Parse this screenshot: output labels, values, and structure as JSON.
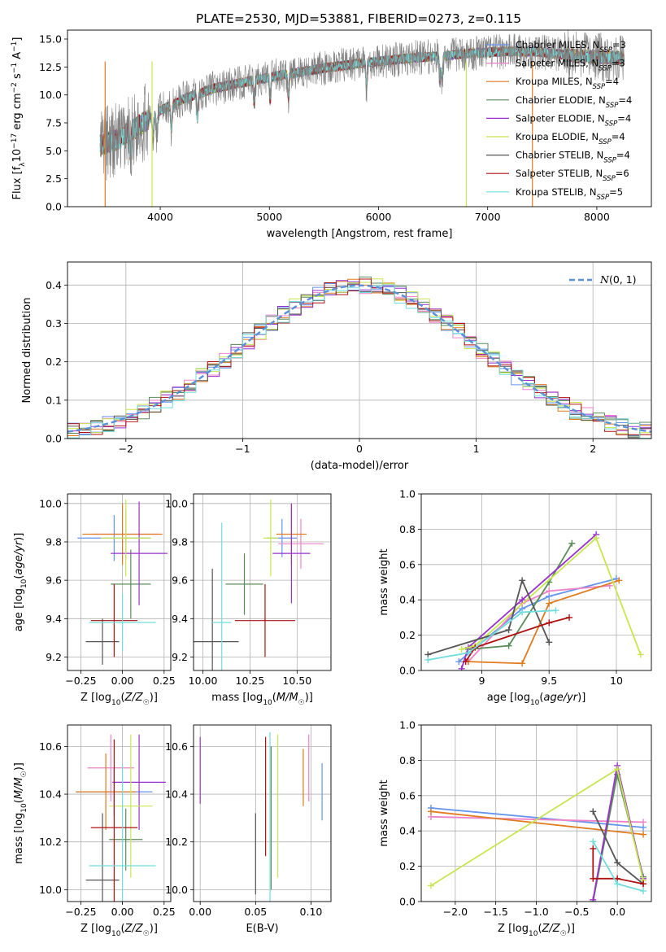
{
  "colors": {
    "Chabrier MILES": "#6495ed",
    "Salpeter MILES": "#ee82c8",
    "Kroupa MILES": "#e07b20",
    "Chabrier ELODIE": "#5a8c5a",
    "Salpeter ELODIE": "#9932cc",
    "Kroupa ELODIE": "#c8e650",
    "Chabrier STELIB": "#555555",
    "Salpeter STELIB": "#b01010",
    "Kroupa STELIB": "#70dcdc"
  },
  "chart_data": [
    {
      "id": "spectrum",
      "type": "line",
      "title": "PLATE=2530, MJD=53881, FIBERID=0273, z=0.115",
      "xlabel": "wavelength [Angstrom, rest frame]",
      "ylabel": "Flux [fλ10⁻¹⁷ erg cm⁻² s⁻¹ A⁻¹]",
      "xlim": [
        3150,
        8500
      ],
      "ylim": [
        0,
        15.8
      ],
      "xticks": [
        4000,
        5000,
        6000,
        7000,
        8000
      ],
      "yticks": [
        0.0,
        2.5,
        5.0,
        7.5,
        10.0,
        12.5,
        15.0
      ],
      "legend_position": "top-right",
      "legend": [
        "Chabrier MILES, N_SSP=3",
        "Salpeter MILES, N_SSP=3",
        "Kroupa MILES, N_SSP=4",
        "Chabrier ELODIE, N_SSP=4",
        "Salpeter ELODIE, N_SSP=4",
        "Kroupa ELODIE, N_SSP=4",
        "Chabrier STELIB, N_SSP=4",
        "Salpeter STELIB, N_SSP=6",
        "Kroupa STELIB, N_SSP=5"
      ],
      "continuum": {
        "x": [
          3450,
          3600,
          3800,
          4000,
          4200,
          4500,
          4800,
          5000,
          5200,
          5500,
          5800,
          6000,
          6300,
          6600,
          6800,
          7000,
          7200,
          7400,
          7600,
          7800,
          8000,
          8250
        ],
        "y": [
          5.5,
          6.0,
          7.2,
          8.6,
          9.6,
          10.6,
          11.2,
          11.6,
          11.9,
          12.4,
          12.8,
          13.0,
          13.3,
          13.5,
          13.7,
          13.8,
          13.9,
          13.9,
          13.7,
          13.5,
          13.4,
          13.3
        ]
      }
    },
    {
      "id": "residuals",
      "type": "line",
      "xlabel": "(data-model)/error",
      "ylabel": "Normed distribution",
      "xlim": [
        -2.5,
        2.5
      ],
      "ylim": [
        0,
        0.46
      ],
      "xticks": [
        -2,
        -1,
        0,
        1,
        2
      ],
      "yticks": [
        0.0,
        0.1,
        0.2,
        0.3,
        0.4
      ],
      "grid": true,
      "legend": "N(0,1)",
      "legend_position": "top-right",
      "gaussian": {
        "mu": 0,
        "sigma": 1
      }
    },
    {
      "id": "age-vs-Z",
      "type": "scatter",
      "xlabel": "Z [log10(Z/Z☉)]",
      "ylabel": "age  [log10(age/yr)]",
      "xlim": [
        -0.33,
        0.29
      ],
      "ylim": [
        9.13,
        10.05
      ],
      "xticks": [
        -0.25,
        0.0,
        0.25
      ],
      "xticklabels": [
        "−0.25",
        "0.00",
        "0.25"
      ],
      "yticks": [
        9.2,
        9.4,
        9.6,
        9.8,
        10.0
      ],
      "grid": true,
      "points": [
        {
          "model": "Chabrier MILES",
          "x": -0.05,
          "xerr": 0.22,
          "y": 9.82,
          "yerr": 0.12
        },
        {
          "model": "Salpeter MILES",
          "x": 0.02,
          "xerr": 0.2,
          "y": 9.84,
          "yerr": 0.13
        },
        {
          "model": "Kroupa MILES",
          "x": 0.0,
          "xerr": 0.24,
          "y": 9.84,
          "yerr": 0.16
        },
        {
          "model": "Chabrier ELODIE",
          "x": 0.05,
          "xerr": 0.12,
          "y": 9.58,
          "yerr": 0.18
        },
        {
          "model": "Salpeter ELODIE",
          "x": 0.1,
          "xerr": 0.17,
          "y": 9.74,
          "yerr": 0.27
        },
        {
          "model": "Kroupa ELODIE",
          "x": 0.02,
          "xerr": 0.15,
          "y": 9.82,
          "yerr": 0.2
        },
        {
          "model": "Chabrier STELIB",
          "x": -0.12,
          "xerr": 0.1,
          "y": 9.28,
          "yerr": 0.12
        },
        {
          "model": "Salpeter STELIB",
          "x": -0.05,
          "xerr": 0.14,
          "y": 9.39,
          "yerr": 0.19
        },
        {
          "model": "Kroupa STELIB",
          "x": 0.0,
          "xerr": 0.2,
          "y": 9.38,
          "yerr": 0.15
        }
      ]
    },
    {
      "id": "age-vs-mass",
      "type": "scatter",
      "xlabel": "mass [log10(M/M☉)]",
      "xlim": [
        9.95,
        10.68
      ],
      "ylim": [
        9.13,
        10.05
      ],
      "xticks": [
        10.0,
        10.25,
        10.5
      ],
      "xticklabels": [
        "10.00",
        "10.25",
        "10.50"
      ],
      "yticks": [
        9.2,
        9.4,
        9.6,
        9.8,
        10.0
      ],
      "grid": true,
      "points": [
        {
          "model": "Chabrier MILES",
          "x": 10.42,
          "xerr": 0.08,
          "y": 9.82,
          "yerr": 0.1
        },
        {
          "model": "Salpeter MILES",
          "x": 10.52,
          "xerr": 0.12,
          "y": 9.79,
          "yerr": 0.13
        },
        {
          "model": "Kroupa MILES",
          "x": 10.47,
          "xerr": 0.08,
          "y": 9.84,
          "yerr": 0.16
        },
        {
          "model": "Chabrier ELODIE",
          "x": 10.22,
          "xerr": 0.1,
          "y": 9.58,
          "yerr": 0.16
        },
        {
          "model": "Salpeter ELODIE",
          "x": 10.47,
          "xerr": 0.1,
          "y": 9.74,
          "yerr": 0.26
        },
        {
          "model": "Kroupa ELODIE",
          "x": 10.36,
          "xerr": 0.04,
          "y": 9.82,
          "yerr": 0.2
        },
        {
          "model": "Chabrier STELIB",
          "x": 10.05,
          "xerr": 0.14,
          "y": 9.28,
          "yerr": 0.38
        },
        {
          "model": "Salpeter STELIB",
          "x": 10.33,
          "xerr": 0.16,
          "y": 9.39,
          "yerr": 0.19
        },
        {
          "model": "Kroupa STELIB",
          "x": 10.1,
          "xerr": 0.05,
          "y": 9.38,
          "yerr": 0.52
        }
      ]
    },
    {
      "id": "massweight-vs-age",
      "type": "line",
      "xlabel": "age  [log10(age/yr)]",
      "ylabel": "mass weight",
      "xlim": [
        8.55,
        10.26
      ],
      "ylim": [
        0,
        1.0
      ],
      "xticks": [
        9.0,
        9.5,
        10.0
      ],
      "yticks": [
        0.0,
        0.2,
        0.4,
        0.6,
        0.8,
        1.0
      ],
      "grid": true,
      "series": [
        {
          "model": "Chabrier MILES",
          "x": [
            8.83,
            9.3,
            9.5,
            10.0
          ],
          "y": [
            0.05,
            0.35,
            0.42,
            0.52
          ]
        },
        {
          "model": "Salpeter MILES",
          "x": [
            8.9,
            9.3,
            9.5,
            9.95
          ],
          "y": [
            0.05,
            0.38,
            0.45,
            0.48
          ]
        },
        {
          "model": "Kroupa MILES",
          "x": [
            8.9,
            9.3,
            9.5,
            10.02
          ],
          "y": [
            0.05,
            0.04,
            0.38,
            0.51
          ]
        },
        {
          "model": "Chabrier ELODIE",
          "x": [
            8.9,
            9.2,
            9.5,
            9.67
          ],
          "y": [
            0.12,
            0.14,
            0.5,
            0.72
          ]
        },
        {
          "model": "Salpeter ELODIE",
          "x": [
            8.85,
            8.9,
            9.3,
            9.85
          ],
          "y": [
            0.01,
            0.13,
            0.4,
            0.77
          ]
        },
        {
          "model": "Kroupa ELODIE",
          "x": [
            8.85,
            8.95,
            9.85,
            10.18
          ],
          "y": [
            0.12,
            0.14,
            0.75,
            0.09
          ]
        },
        {
          "model": "Chabrier STELIB",
          "x": [
            8.6,
            9.2,
            9.3,
            9.5
          ],
          "y": [
            0.09,
            0.23,
            0.51,
            0.16
          ]
        },
        {
          "model": "Salpeter STELIB",
          "x": [
            8.88,
            8.95,
            9.5,
            9.65
          ],
          "y": [
            0.05,
            0.13,
            0.27,
            0.3
          ]
        },
        {
          "model": "Kroupa STELIB",
          "x": [
            8.6,
            8.9,
            9.3,
            9.55
          ],
          "y": [
            0.06,
            0.1,
            0.33,
            0.34
          ]
        }
      ]
    },
    {
      "id": "mass-vs-Z",
      "type": "scatter",
      "xlabel": "Z [log10(Z/Z☉)]",
      "ylabel": "mass [log10(M/M☉)]",
      "xlim": [
        -0.33,
        0.29
      ],
      "ylim": [
        9.95,
        10.69
      ],
      "xticks": [
        -0.25,
        0.0,
        0.25
      ],
      "xticklabels": [
        "−0.25",
        "0.00",
        "0.25"
      ],
      "yticks": [
        10.0,
        10.2,
        10.4,
        10.6
      ],
      "grid": true,
      "points": [
        {
          "model": "Chabrier MILES",
          "x": -0.05,
          "xerr": 0.23,
          "y": 10.41,
          "yerr": 0.1
        },
        {
          "model": "Salpeter MILES",
          "x": -0.07,
          "xerr": 0.14,
          "y": 10.51,
          "yerr": 0.14
        },
        {
          "model": "Kroupa MILES",
          "x": -0.1,
          "xerr": 0.18,
          "y": 10.41,
          "yerr": 0.16
        },
        {
          "model": "Chabrier ELODIE",
          "x": 0.02,
          "xerr": 0.1,
          "y": 10.21,
          "yerr": 0.13
        },
        {
          "model": "Salpeter ELODIE",
          "x": 0.1,
          "xerr": 0.16,
          "y": 10.45,
          "yerr": 0.2
        },
        {
          "model": "Kroupa ELODIE",
          "x": 0.05,
          "xerr": 0.13,
          "y": 10.35,
          "yerr": 0.3
        },
        {
          "model": "Chabrier STELIB",
          "x": -0.12,
          "xerr": 0.1,
          "y": 10.04,
          "yerr": 0.28
        },
        {
          "model": "Salpeter STELIB",
          "x": -0.05,
          "xerr": 0.14,
          "y": 10.26,
          "yerr": 0.37
        },
        {
          "model": "Kroupa STELIB",
          "x": 0.0,
          "xerr": 0.2,
          "y": 10.1,
          "yerr": 0.42
        }
      ]
    },
    {
      "id": "mass-vs-EBV",
      "type": "scatter",
      "xlabel": "E(B-V)",
      "xlim": [
        -0.006,
        0.118
      ],
      "ylim": [
        9.95,
        10.69
      ],
      "xticks": [
        0.0,
        0.05,
        0.1
      ],
      "xticklabels": [
        "0.00",
        "0.05",
        "0.10"
      ],
      "yticks": [
        10.0,
        10.2,
        10.4,
        10.6
      ],
      "grid": true,
      "points": [
        {
          "model": "Chabrier MILES",
          "x": 0.11,
          "y": 10.41,
          "yerr": 0.12
        },
        {
          "model": "Salpeter MILES",
          "x": 0.098,
          "y": 10.51,
          "yerr": 0.14
        },
        {
          "model": "Kroupa MILES",
          "x": 0.093,
          "y": 10.47,
          "yerr": 0.12
        },
        {
          "model": "Chabrier ELODIE",
          "x": 0.064,
          "y": 10.3,
          "yerr": 0.3
        },
        {
          "model": "Salpeter ELODIE",
          "x": 0.0,
          "y": 10.5,
          "yerr": 0.14
        },
        {
          "model": "Kroupa ELODIE",
          "x": 0.07,
          "y": 10.35,
          "yerr": 0.3
        },
        {
          "model": "Chabrier STELIB",
          "x": 0.05,
          "y": 10.15,
          "yerr": 0.17
        },
        {
          "model": "Salpeter STELIB",
          "x": 0.059,
          "y": 10.39,
          "yerr": 0.25
        },
        {
          "model": "Kroupa STELIB",
          "x": 0.063,
          "y": 10.24,
          "yerr": 0.42
        }
      ]
    },
    {
      "id": "massweight-vs-Z",
      "type": "line",
      "xlabel": "Z [log10(Z/Z☉)]",
      "ylabel": "mass weight",
      "xlim": [
        -2.42,
        0.42
      ],
      "ylim": [
        0,
        1.0
      ],
      "xticks": [
        -2.0,
        -1.5,
        -1.0,
        -0.5,
        0.0
      ],
      "xticklabels": [
        "−2.0",
        "−1.5",
        "−1.0",
        "−0.5",
        "0.0"
      ],
      "yticks": [
        0.0,
        0.2,
        0.4,
        0.6,
        0.8,
        1.0
      ],
      "grid": true,
      "series": [
        {
          "model": "Chabrier MILES",
          "x": [
            -2.3,
            0.32
          ],
          "y": [
            0.53,
            0.42
          ]
        },
        {
          "model": "Salpeter MILES",
          "x": [
            -2.3,
            0.32
          ],
          "y": [
            0.48,
            0.45
          ]
        },
        {
          "model": "Kroupa MILES",
          "x": [
            -2.3,
            0.32
          ],
          "y": [
            0.51,
            0.38
          ]
        },
        {
          "model": "Chabrier ELODIE",
          "x": [
            -0.3,
            0.0,
            0.32
          ],
          "y": [
            0.0,
            0.72,
            0.14
          ]
        },
        {
          "model": "Salpeter ELODIE",
          "x": [
            -0.3,
            0.0,
            0.32
          ],
          "y": [
            0.01,
            0.77,
            0.13
          ]
        },
        {
          "model": "Kroupa ELODIE",
          "x": [
            -2.3,
            0.0,
            0.32
          ],
          "y": [
            0.09,
            0.75,
            0.12
          ]
        },
        {
          "model": "Chabrier STELIB",
          "x": [
            -0.3,
            0.0,
            0.32
          ],
          "y": [
            0.51,
            0.22,
            0.1
          ]
        },
        {
          "model": "Salpeter STELIB",
          "x": [
            -0.3,
            -0.3,
            0.0,
            0.32
          ],
          "y": [
            0.3,
            0.13,
            0.13,
            0.1
          ]
        },
        {
          "model": "Kroupa STELIB",
          "x": [
            -0.3,
            0.0,
            0.32
          ],
          "y": [
            0.34,
            0.1,
            0.06
          ]
        }
      ]
    }
  ]
}
